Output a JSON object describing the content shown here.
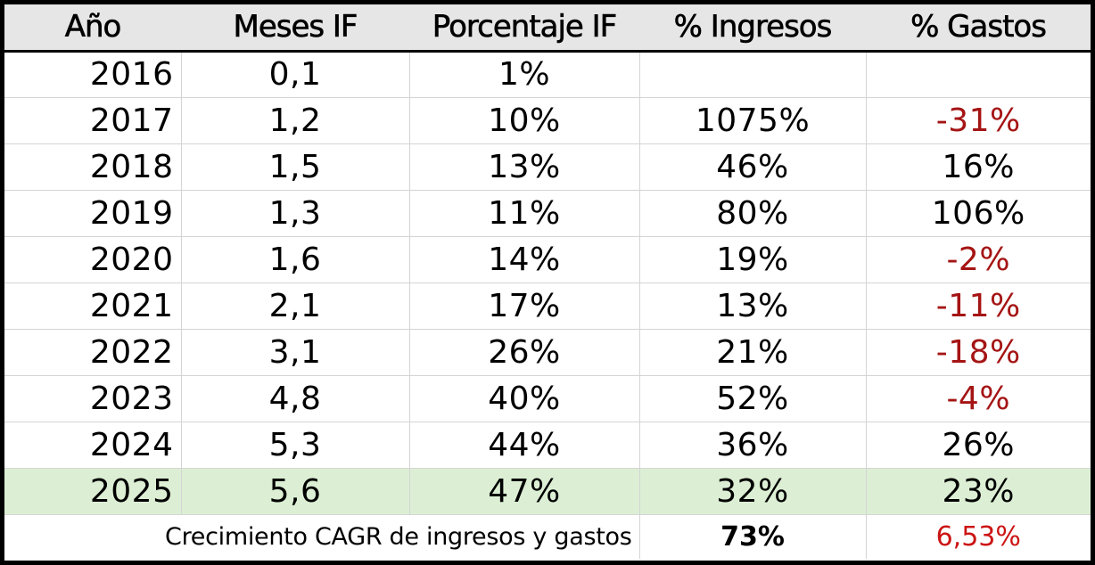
{
  "headers": [
    "Año",
    "Meses IF",
    "Porcentaje IF",
    "% Ingresos",
    "% Gastos"
  ],
  "rows": [
    {
      "year": "2016",
      "meses": "0,1",
      "porcentaje": "1%",
      "ingresos": "",
      "gastos": ""
    },
    {
      "year": "2017",
      "meses": "1,2",
      "porcentaje": "10%",
      "ingresos": "1075%",
      "gastos": "-31%"
    },
    {
      "year": "2018",
      "meses": "1,5",
      "porcentaje": "13%",
      "ingresos": "46%",
      "gastos": "16%"
    },
    {
      "year": "2019",
      "meses": "1,3",
      "porcentaje": "11%",
      "ingresos": "80%",
      "gastos": "106%"
    },
    {
      "year": "2020",
      "meses": "1,6",
      "porcentaje": "14%",
      "ingresos": "19%",
      "gastos": "-2%"
    },
    {
      "year": "2021",
      "meses": "2,1",
      "porcentaje": "17%",
      "ingresos": "13%",
      "gastos": "-11%"
    },
    {
      "year": "2022",
      "meses": "3,1",
      "porcentaje": "26%",
      "ingresos": "21%",
      "gastos": "-18%"
    },
    {
      "year": "2023",
      "meses": "4,8",
      "porcentaje": "40%",
      "ingresos": "52%",
      "gastos": "-4%"
    },
    {
      "year": "2024",
      "meses": "5,3",
      "porcentaje": "44%",
      "ingresos": "36%",
      "gastos": "26%"
    },
    {
      "year": "2025",
      "meses": "5,6",
      "porcentaje": "47%",
      "ingresos": "32%",
      "gastos": "23%"
    }
  ],
  "footer": {
    "label": "Crecimiento CAGR de ingresos y gastos",
    "cagr_ingresos": "73%",
    "cagr_gastos": "6,53%"
  },
  "colors": {
    "header_bg": "#e6e6e6",
    "highlight_row_bg": "#dcefd4",
    "negative_text": "#a51414",
    "cagr_gastos_text": "#cc1414"
  }
}
